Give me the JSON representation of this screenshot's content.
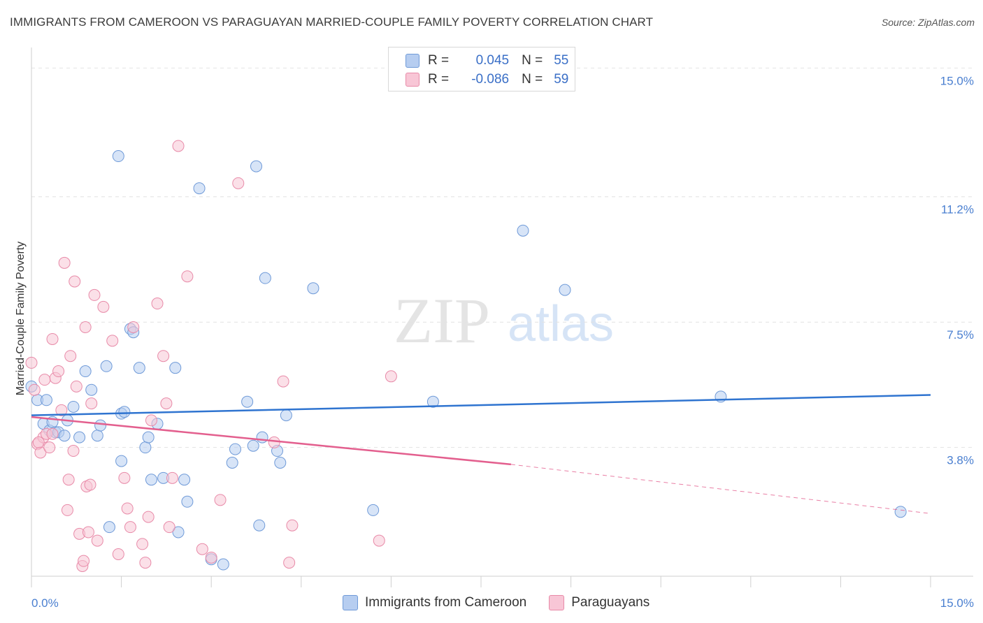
{
  "title": "IMMIGRANTS FROM CAMEROON VS PARAGUAYAN MARRIED-COUPLE FAMILY POVERTY CORRELATION CHART",
  "source": "Source: ZipAtlas.com",
  "watermark": {
    "zip": "ZIP",
    "atlas": "atlas"
  },
  "legend": {
    "rows": [
      {
        "r_label": "R =",
        "r_value": "0.045",
        "n_label": "N =",
        "n_value": "55"
      },
      {
        "r_label": "R =",
        "r_value": "-0.086",
        "n_label": "N =",
        "n_value": "59"
      }
    ]
  },
  "colors": {
    "blue_fill": "#b6cdf0",
    "blue_stroke": "#6f9ad8",
    "blue_line": "#2f74d0",
    "pink_fill": "#f8c6d6",
    "pink_stroke": "#e88aa8",
    "pink_line": "#e35f8e",
    "tick_label": "#4a7fd0",
    "grid": "#e2e2e2"
  },
  "chart_data": {
    "type": "scatter",
    "title": "IMMIGRANTS FROM CAMEROON VS PARAGUAYAN MARRIED-COUPLE FAMILY POVERTY CORRELATION CHART",
    "xlabel": "",
    "ylabel": "Married-Couple Family Poverty",
    "xlim": [
      0,
      15
    ],
    "ylim": [
      0,
      15.4
    ],
    "x_tick_labels": [
      "0.0%",
      "15.0%"
    ],
    "y_ticks": [
      3.8,
      7.5,
      11.2,
      15.0
    ],
    "y_tick_labels": [
      "3.8%",
      "7.5%",
      "11.2%",
      "15.0%"
    ],
    "grid": true,
    "legend_position": "top-center",
    "series": [
      {
        "name": "Immigrants from Cameroon",
        "color": "#6f9ad8",
        "trend": {
          "x": [
            0,
            15
          ],
          "y": [
            4.75,
            5.35
          ]
        },
        "points": [
          [
            0.0,
            5.6
          ],
          [
            0.1,
            5.2
          ],
          [
            0.2,
            4.5
          ],
          [
            0.25,
            5.2
          ],
          [
            0.3,
            4.3
          ],
          [
            0.35,
            4.55
          ],
          [
            0.4,
            4.25
          ],
          [
            0.45,
            4.25
          ],
          [
            0.55,
            4.15
          ],
          [
            0.6,
            4.6
          ],
          [
            0.7,
            5.0
          ],
          [
            0.8,
            4.1
          ],
          [
            0.9,
            6.05
          ],
          [
            1.0,
            5.5
          ],
          [
            1.1,
            4.15
          ],
          [
            1.15,
            4.45
          ],
          [
            1.25,
            6.2
          ],
          [
            1.3,
            1.45
          ],
          [
            1.45,
            12.4
          ],
          [
            1.5,
            3.4
          ],
          [
            1.5,
            4.8
          ],
          [
            1.55,
            4.85
          ],
          [
            1.65,
            7.3
          ],
          [
            1.7,
            7.2
          ],
          [
            1.8,
            6.15
          ],
          [
            1.9,
            3.8
          ],
          [
            1.95,
            4.1
          ],
          [
            2.0,
            2.85
          ],
          [
            2.1,
            4.5
          ],
          [
            2.2,
            2.9
          ],
          [
            2.4,
            6.15
          ],
          [
            2.45,
            1.3
          ],
          [
            2.55,
            2.85
          ],
          [
            2.6,
            2.2
          ],
          [
            2.8,
            11.45
          ],
          [
            3.0,
            0.5
          ],
          [
            3.2,
            0.35
          ],
          [
            3.35,
            3.35
          ],
          [
            3.4,
            3.75
          ],
          [
            3.6,
            5.15
          ],
          [
            3.7,
            3.85
          ],
          [
            3.75,
            12.1
          ],
          [
            3.8,
            1.5
          ],
          [
            3.85,
            4.1
          ],
          [
            3.9,
            8.8
          ],
          [
            4.1,
            3.7
          ],
          [
            4.15,
            3.35
          ],
          [
            4.25,
            4.75
          ],
          [
            4.7,
            8.5
          ],
          [
            5.7,
            1.95
          ],
          [
            6.7,
            5.15
          ],
          [
            8.2,
            10.2
          ],
          [
            8.9,
            8.45
          ],
          [
            11.5,
            5.3
          ],
          [
            14.5,
            1.9
          ]
        ]
      },
      {
        "name": "Paraguayans",
        "color": "#e88aa8",
        "trend": {
          "x": [
            0,
            8
          ],
          "y": [
            4.7,
            3.3
          ]
        },
        "trend_dashed": {
          "x": [
            8,
            15
          ],
          "y": [
            3.3,
            1.85
          ]
        },
        "points": [
          [
            0.0,
            6.3
          ],
          [
            0.05,
            5.5
          ],
          [
            0.1,
            3.9
          ],
          [
            0.15,
            3.65
          ],
          [
            0.2,
            4.1
          ],
          [
            0.22,
            5.8
          ],
          [
            0.25,
            4.2
          ],
          [
            0.3,
            3.8
          ],
          [
            0.35,
            4.2
          ],
          [
            0.35,
            7.0
          ],
          [
            0.4,
            5.85
          ],
          [
            0.45,
            6.05
          ],
          [
            0.5,
            4.9
          ],
          [
            0.55,
            9.25
          ],
          [
            0.6,
            1.95
          ],
          [
            0.62,
            2.85
          ],
          [
            0.65,
            6.5
          ],
          [
            0.7,
            3.7
          ],
          [
            0.72,
            8.7
          ],
          [
            0.75,
            5.6
          ],
          [
            0.8,
            1.25
          ],
          [
            0.85,
            0.3
          ],
          [
            0.87,
            0.45
          ],
          [
            0.9,
            7.35
          ],
          [
            0.92,
            2.65
          ],
          [
            0.95,
            1.3
          ],
          [
            0.98,
            2.7
          ],
          [
            1.0,
            5.1
          ],
          [
            1.05,
            8.3
          ],
          [
            1.1,
            1.05
          ],
          [
            1.2,
            7.95
          ],
          [
            1.35,
            6.95
          ],
          [
            1.45,
            0.65
          ],
          [
            1.55,
            2.9
          ],
          [
            1.6,
            2.0
          ],
          [
            1.65,
            1.45
          ],
          [
            1.7,
            7.35
          ],
          [
            1.85,
            0.95
          ],
          [
            1.9,
            0.4
          ],
          [
            1.95,
            1.75
          ],
          [
            2.0,
            4.6
          ],
          [
            2.1,
            8.05
          ],
          [
            2.2,
            6.5
          ],
          [
            2.25,
            5.1
          ],
          [
            2.3,
            1.45
          ],
          [
            2.35,
            2.9
          ],
          [
            2.45,
            12.7
          ],
          [
            2.6,
            8.85
          ],
          [
            2.85,
            0.8
          ],
          [
            3.0,
            0.55
          ],
          [
            3.15,
            2.25
          ],
          [
            3.45,
            11.6
          ],
          [
            4.2,
            5.75
          ],
          [
            4.3,
            0.4
          ],
          [
            4.35,
            1.5
          ],
          [
            5.8,
            1.05
          ],
          [
            6.0,
            5.9
          ],
          [
            4.05,
            3.95
          ],
          [
            0.12,
            3.95
          ]
        ]
      }
    ]
  }
}
